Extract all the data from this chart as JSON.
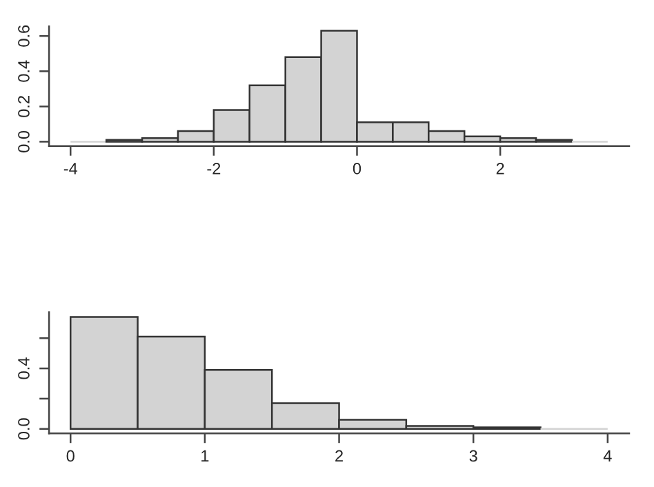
{
  "chart_data": [
    {
      "type": "histogram",
      "color": "#d3d3d3",
      "bins": [
        -4,
        -3.5,
        -3,
        -2.5,
        -2,
        -1.5,
        -1,
        -0.5,
        0,
        0.5,
        1,
        1.5,
        2,
        2.5,
        3,
        3.5
      ],
      "values": [
        0,
        0.01,
        0.02,
        0.06,
        0.18,
        0.32,
        0.48,
        0.63,
        0.11,
        0.11,
        0.06,
        0.03,
        0.02,
        0.01,
        0
      ],
      "xlim": [
        -4.3,
        3.8
      ],
      "xticks": [
        -4,
        -2,
        0,
        2
      ],
      "ylim": [
        -0.025,
        0.655
      ],
      "yticks": [
        {
          "value": 0,
          "label": "0.0"
        },
        {
          "value": 0.2,
          "label": "0.2"
        },
        {
          "value": 0.4,
          "label": "0.4"
        },
        {
          "value": 0.6,
          "label": "0.6"
        }
      ]
    },
    {
      "type": "histogram",
      "color": "#d3d3d3",
      "bins": [
        0,
        0.5,
        1,
        1.5,
        2,
        2.5,
        3,
        3.5,
        4
      ],
      "values": [
        0.74,
        0.61,
        0.39,
        0.17,
        0.06,
        0.02,
        0.01,
        0
      ],
      "xlim": [
        -0.16,
        4.16
      ],
      "xticks": [
        0,
        1,
        2,
        3,
        4
      ],
      "ylim": [
        -0.03,
        0.772
      ],
      "yticks": [
        {
          "value": 0,
          "label": "0.0"
        },
        {
          "value": 0.2,
          "label": null
        },
        {
          "value": 0.4,
          "label": "0.4"
        },
        {
          "value": 0.6,
          "label": null
        }
      ]
    }
  ]
}
